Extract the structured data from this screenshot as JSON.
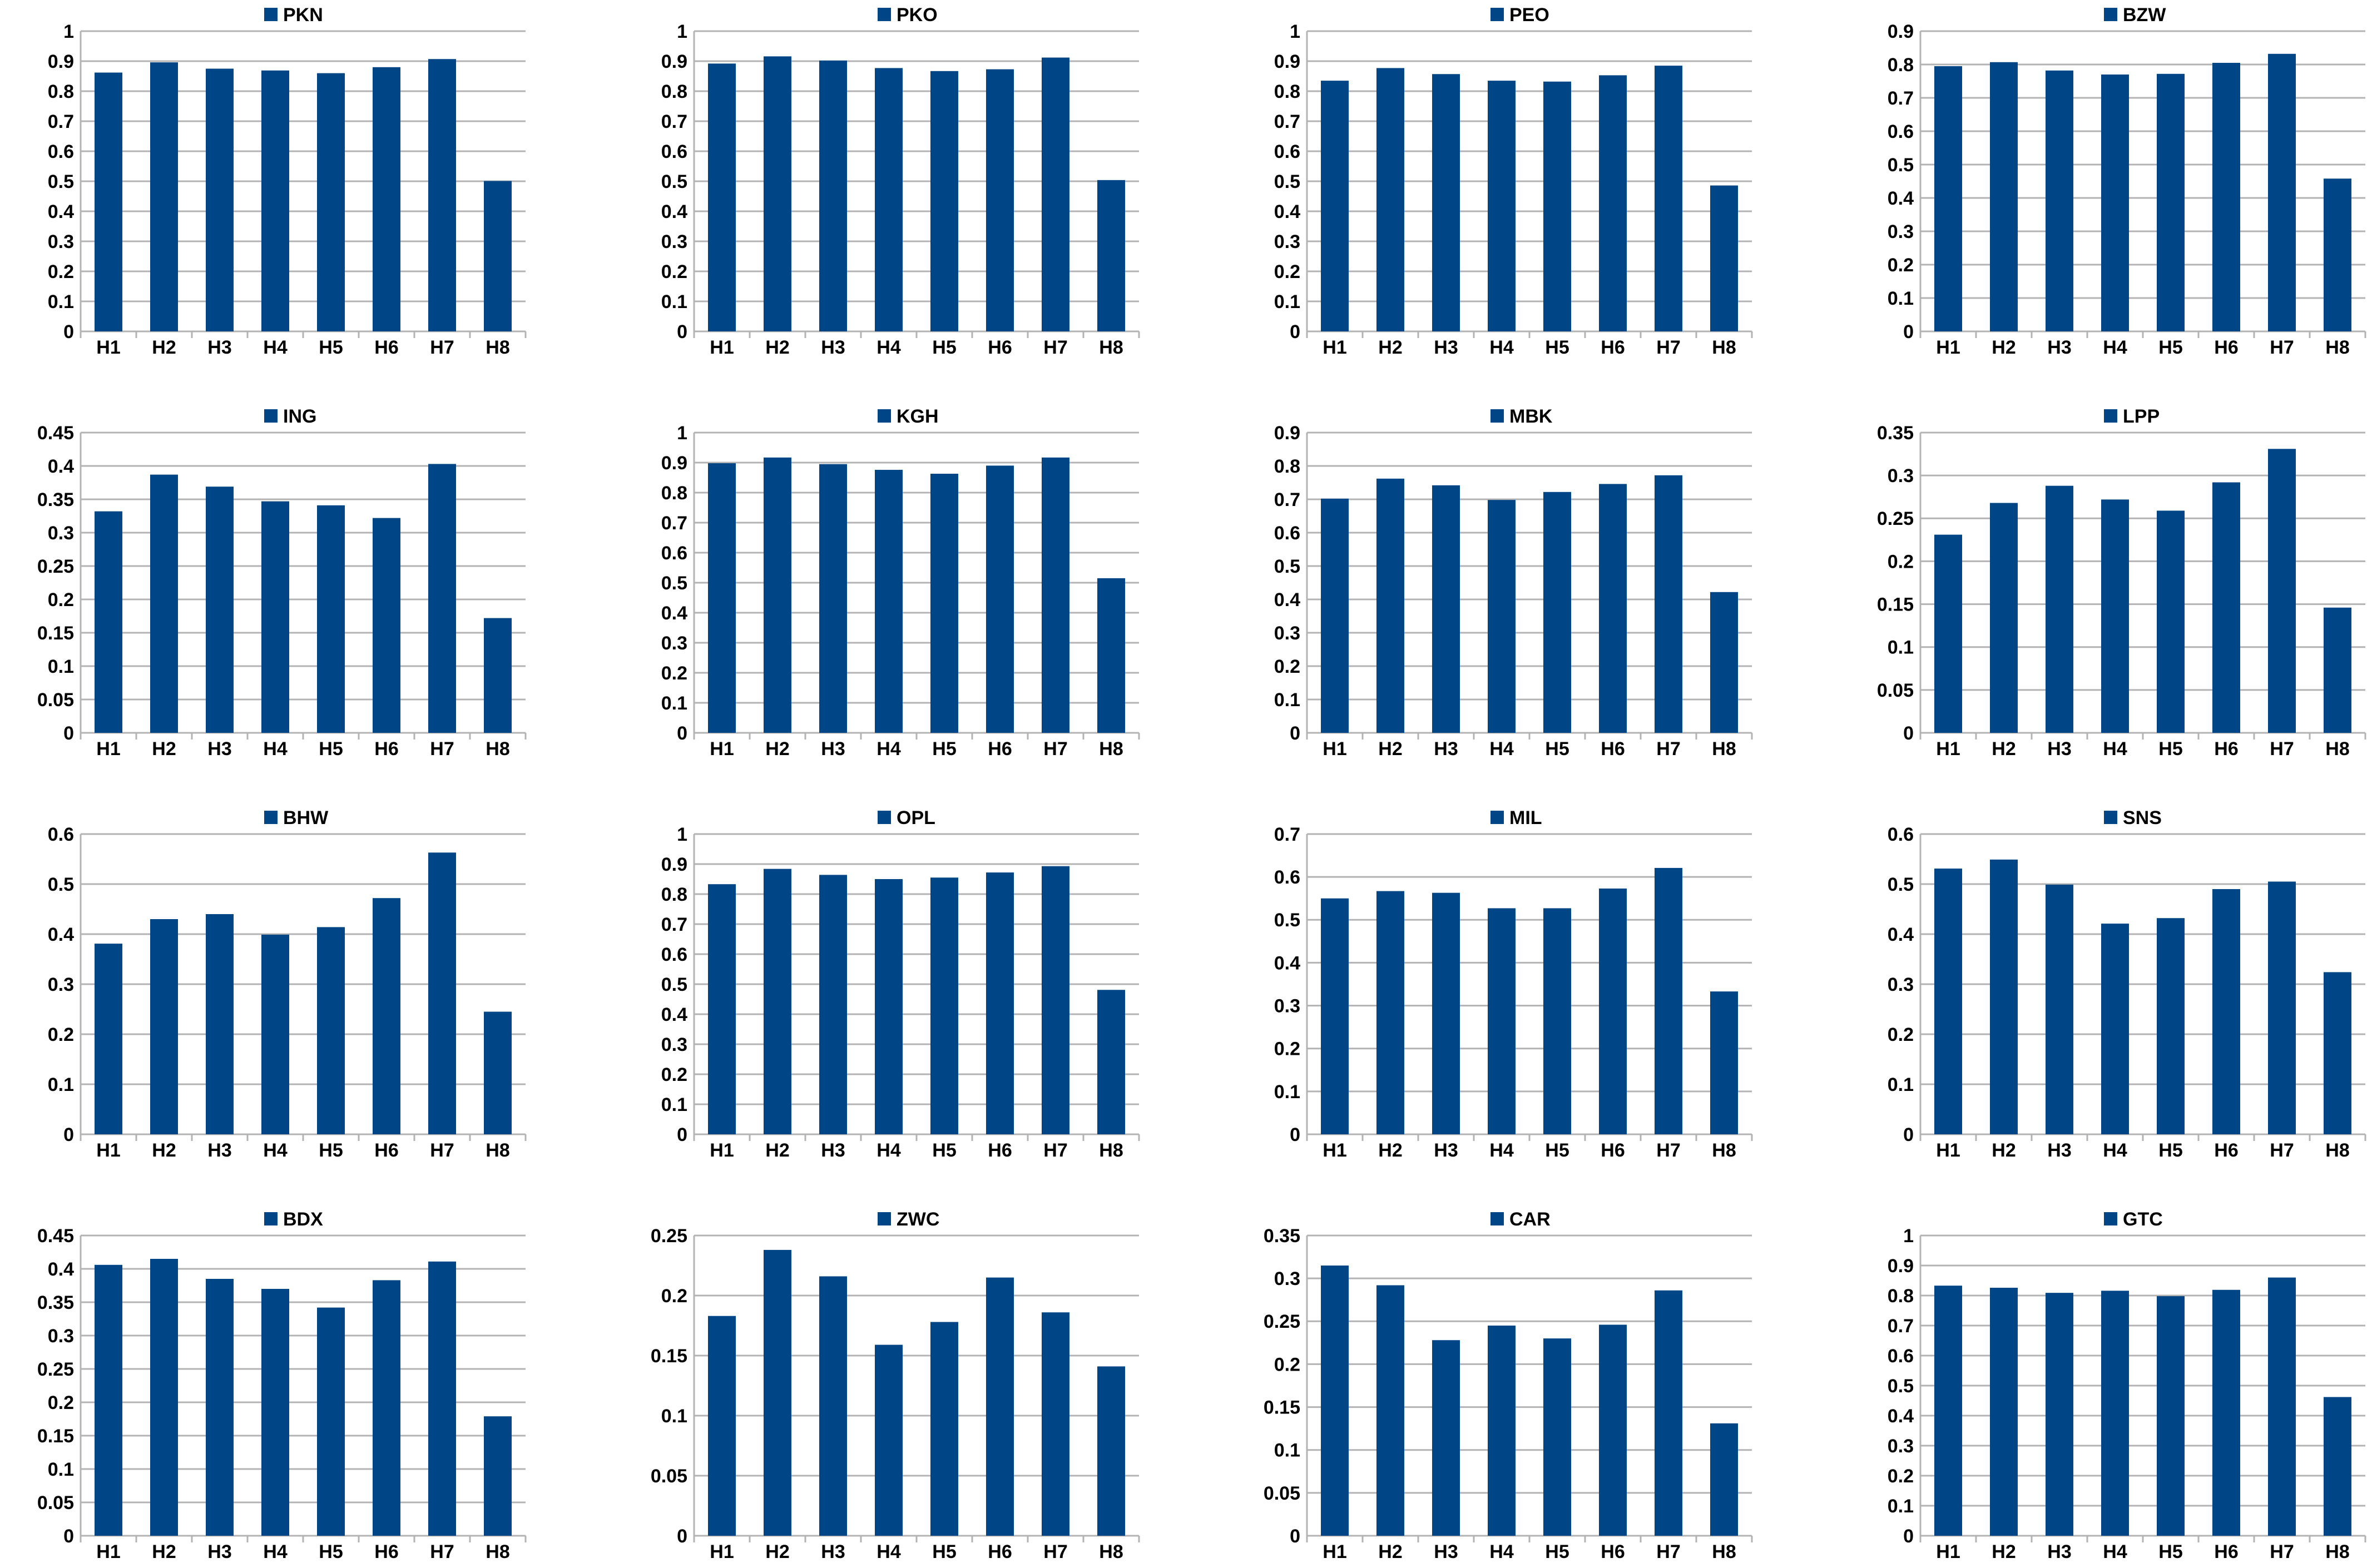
{
  "colors": {
    "bar": "#004586",
    "grid": "#b3b3b3",
    "text": "#000000",
    "background": "#ffffff"
  },
  "chart_data": [
    {
      "type": "bar",
      "title": "PKN",
      "legend": "top-center",
      "grid": true,
      "categories": [
        "H1",
        "H2",
        "H3",
        "H4",
        "H5",
        "H6",
        "H7",
        "H8"
      ],
      "series": [
        {
          "name": "PKN",
          "values": [
            0.862,
            0.896,
            0.875,
            0.869,
            0.86,
            0.88,
            0.907,
            0.501
          ]
        }
      ],
      "ylim": [
        0,
        1
      ],
      "yticks": [
        0,
        0.1,
        0.2,
        0.3,
        0.4,
        0.5,
        0.6,
        0.7,
        0.8,
        0.9,
        1
      ]
    },
    {
      "type": "bar",
      "title": "PKO",
      "legend": "top-center",
      "grid": true,
      "categories": [
        "H1",
        "H2",
        "H3",
        "H4",
        "H5",
        "H6",
        "H7",
        "H8"
      ],
      "series": [
        {
          "name": "PKO",
          "values": [
            0.892,
            0.916,
            0.902,
            0.877,
            0.867,
            0.873,
            0.912,
            0.504
          ]
        }
      ],
      "ylim": [
        0,
        1
      ],
      "yticks": [
        0,
        0.1,
        0.2,
        0.3,
        0.4,
        0.5,
        0.6,
        0.7,
        0.8,
        0.9,
        1
      ]
    },
    {
      "type": "bar",
      "title": "PEO",
      "legend": "top-center",
      "grid": true,
      "categories": [
        "H1",
        "H2",
        "H3",
        "H4",
        "H5",
        "H6",
        "H7",
        "H8"
      ],
      "series": [
        {
          "name": "PEO",
          "values": [
            0.835,
            0.877,
            0.857,
            0.835,
            0.832,
            0.853,
            0.885,
            0.486
          ]
        }
      ],
      "ylim": [
        0,
        1
      ],
      "yticks": [
        0,
        0.1,
        0.2,
        0.3,
        0.4,
        0.5,
        0.6,
        0.7,
        0.8,
        0.9,
        1
      ]
    },
    {
      "type": "bar",
      "title": "BZW",
      "legend": "top-center",
      "grid": true,
      "categories": [
        "H1",
        "H2",
        "H3",
        "H4",
        "H5",
        "H6",
        "H7",
        "H8"
      ],
      "series": [
        {
          "name": "BZW",
          "values": [
            0.795,
            0.807,
            0.782,
            0.77,
            0.772,
            0.805,
            0.832,
            0.458
          ]
        }
      ],
      "ylim": [
        0,
        0.9
      ],
      "yticks": [
        0,
        0.1,
        0.2,
        0.3,
        0.4,
        0.5,
        0.6,
        0.7,
        0.8,
        0.9
      ]
    },
    {
      "type": "bar",
      "title": "ING",
      "legend": "top-center",
      "grid": true,
      "categories": [
        "H1",
        "H2",
        "H3",
        "H4",
        "H5",
        "H6",
        "H7",
        "H8"
      ],
      "series": [
        {
          "name": "ING",
          "values": [
            0.332,
            0.387,
            0.369,
            0.347,
            0.341,
            0.322,
            0.403,
            0.172
          ]
        }
      ],
      "ylim": [
        0,
        0.45
      ],
      "yticks": [
        0,
        0.05,
        0.1,
        0.15,
        0.2,
        0.25,
        0.3,
        0.35,
        0.4,
        0.45
      ]
    },
    {
      "type": "bar",
      "title": "KGH",
      "legend": "top-center",
      "grid": true,
      "categories": [
        "H1",
        "H2",
        "H3",
        "H4",
        "H5",
        "H6",
        "H7",
        "H8"
      ],
      "series": [
        {
          "name": "KGH",
          "values": [
            0.898,
            0.917,
            0.895,
            0.876,
            0.863,
            0.89,
            0.917,
            0.515
          ]
        }
      ],
      "ylim": [
        0,
        1
      ],
      "yticks": [
        0,
        0.1,
        0.2,
        0.3,
        0.4,
        0.5,
        0.6,
        0.7,
        0.8,
        0.9,
        1
      ]
    },
    {
      "type": "bar",
      "title": "MBK",
      "legend": "top-center",
      "grid": true,
      "categories": [
        "H1",
        "H2",
        "H3",
        "H4",
        "H5",
        "H6",
        "H7",
        "H8"
      ],
      "series": [
        {
          "name": "MBK",
          "values": [
            0.702,
            0.762,
            0.742,
            0.698,
            0.722,
            0.746,
            0.772,
            0.422
          ]
        }
      ],
      "ylim": [
        0,
        0.9
      ],
      "yticks": [
        0,
        0.1,
        0.2,
        0.3,
        0.4,
        0.5,
        0.6,
        0.7,
        0.8,
        0.9
      ]
    },
    {
      "type": "bar",
      "title": "LPP",
      "legend": "top-center",
      "grid": true,
      "categories": [
        "H1",
        "H2",
        "H3",
        "H4",
        "H5",
        "H6",
        "H7",
        "H8"
      ],
      "series": [
        {
          "name": "LPP",
          "values": [
            0.231,
            0.268,
            0.288,
            0.272,
            0.259,
            0.292,
            0.331,
            0.146
          ]
        }
      ],
      "ylim": [
        0,
        0.35
      ],
      "yticks": [
        0,
        0.05,
        0.1,
        0.15,
        0.2,
        0.25,
        0.3,
        0.35
      ]
    },
    {
      "type": "bar",
      "title": "BHW",
      "legend": "top-center",
      "grid": true,
      "categories": [
        "H1",
        "H2",
        "H3",
        "H4",
        "H5",
        "H6",
        "H7",
        "H8"
      ],
      "series": [
        {
          "name": "BHW",
          "values": [
            0.381,
            0.43,
            0.44,
            0.399,
            0.414,
            0.472,
            0.563,
            0.245
          ]
        }
      ],
      "ylim": [
        0,
        0.6
      ],
      "yticks": [
        0,
        0.1,
        0.2,
        0.3,
        0.4,
        0.5,
        0.6
      ]
    },
    {
      "type": "bar",
      "title": "OPL",
      "legend": "top-center",
      "grid": true,
      "categories": [
        "H1",
        "H2",
        "H3",
        "H4",
        "H5",
        "H6",
        "H7",
        "H8"
      ],
      "series": [
        {
          "name": "OPL",
          "values": [
            0.833,
            0.884,
            0.864,
            0.85,
            0.855,
            0.872,
            0.893,
            0.481
          ]
        }
      ],
      "ylim": [
        0,
        1
      ],
      "yticks": [
        0,
        0.1,
        0.2,
        0.3,
        0.4,
        0.5,
        0.6,
        0.7,
        0.8,
        0.9,
        1
      ]
    },
    {
      "type": "bar",
      "title": "MIL",
      "legend": "top-center",
      "grid": true,
      "categories": [
        "H1",
        "H2",
        "H3",
        "H4",
        "H5",
        "H6",
        "H7",
        "H8"
      ],
      "series": [
        {
          "name": "MIL",
          "values": [
            0.55,
            0.567,
            0.563,
            0.527,
            0.527,
            0.573,
            0.621,
            0.333
          ]
        }
      ],
      "ylim": [
        0,
        0.7
      ],
      "yticks": [
        0,
        0.1,
        0.2,
        0.3,
        0.4,
        0.5,
        0.6,
        0.7
      ]
    },
    {
      "type": "bar",
      "title": "SNS",
      "legend": "top-center",
      "grid": true,
      "categories": [
        "H1",
        "H2",
        "H3",
        "H4",
        "H5",
        "H6",
        "H7",
        "H8"
      ],
      "series": [
        {
          "name": "SNS",
          "values": [
            0.531,
            0.549,
            0.499,
            0.421,
            0.432,
            0.49,
            0.505,
            0.324
          ]
        }
      ],
      "ylim": [
        0,
        0.6
      ],
      "yticks": [
        0,
        0.1,
        0.2,
        0.3,
        0.4,
        0.5,
        0.6
      ]
    },
    {
      "type": "bar",
      "title": "BDX",
      "legend": "top-center",
      "grid": true,
      "categories": [
        "H1",
        "H2",
        "H3",
        "H4",
        "H5",
        "H6",
        "H7",
        "H8"
      ],
      "series": [
        {
          "name": "BDX",
          "values": [
            0.406,
            0.415,
            0.385,
            0.37,
            0.342,
            0.383,
            0.411,
            0.179
          ]
        }
      ],
      "ylim": [
        0,
        0.45
      ],
      "yticks": [
        0,
        0.05,
        0.1,
        0.15,
        0.2,
        0.25,
        0.3,
        0.35,
        0.4,
        0.45
      ]
    },
    {
      "type": "bar",
      "title": "ZWC",
      "legend": "top-center",
      "grid": true,
      "categories": [
        "H1",
        "H2",
        "H3",
        "H4",
        "H5",
        "H6",
        "H7",
        "H8"
      ],
      "series": [
        {
          "name": "ZWC",
          "values": [
            0.183,
            0.238,
            0.216,
            0.159,
            0.178,
            0.215,
            0.186,
            0.141
          ]
        }
      ],
      "ylim": [
        0,
        0.25
      ],
      "yticks": [
        0,
        0.05,
        0.1,
        0.15,
        0.2,
        0.25
      ]
    },
    {
      "type": "bar",
      "title": "CAR",
      "legend": "top-center",
      "grid": true,
      "categories": [
        "H1",
        "H2",
        "H3",
        "H4",
        "H5",
        "H6",
        "H7",
        "H8"
      ],
      "series": [
        {
          "name": "CAR",
          "values": [
            0.315,
            0.292,
            0.228,
            0.245,
            0.23,
            0.246,
            0.286,
            0.131
          ]
        }
      ],
      "ylim": [
        0,
        0.35
      ],
      "yticks": [
        0,
        0.05,
        0.1,
        0.15,
        0.2,
        0.25,
        0.3,
        0.35
      ]
    },
    {
      "type": "bar",
      "title": "GTC",
      "legend": "top-center",
      "grid": true,
      "categories": [
        "H1",
        "H2",
        "H3",
        "H4",
        "H5",
        "H6",
        "H7",
        "H8"
      ],
      "series": [
        {
          "name": "GTC",
          "values": [
            0.833,
            0.826,
            0.809,
            0.816,
            0.798,
            0.819,
            0.86,
            0.462
          ]
        }
      ],
      "ylim": [
        0,
        1
      ],
      "yticks": [
        0,
        0.1,
        0.2,
        0.3,
        0.4,
        0.5,
        0.6,
        0.7,
        0.8,
        0.9,
        1
      ]
    }
  ]
}
